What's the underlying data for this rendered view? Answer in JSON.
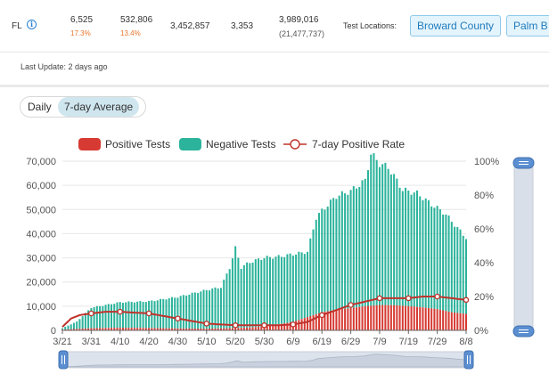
{
  "stats": {
    "state": "FL",
    "info_icon": "info-icon",
    "values": [
      {
        "value": "6,525",
        "sub": "17.3%"
      },
      {
        "value": "532,806",
        "sub": "13.4%"
      },
      {
        "value": "3,452,857",
        "sub": ""
      },
      {
        "value": "3,353",
        "sub": ""
      },
      {
        "value": "3,989,016",
        "sub": "(21,477,737)"
      }
    ],
    "test_locations_label": "Test Locations:",
    "locations": [
      "Broward County",
      "Palm B"
    ]
  },
  "last_update": "Last Update: 2 days ago",
  "toggle": {
    "options": [
      "Daily",
      "7-day Average"
    ],
    "active": "7-day Average"
  },
  "chart_data": {
    "type": "bar",
    "legend": [
      "Positive Tests",
      "Negative Tests",
      "7-day Positive Rate"
    ],
    "legend_position": "top",
    "colors": {
      "positive": "#d63a32",
      "negative": "#2bb39b",
      "rate": "#c0322c"
    },
    "x_tick_labels": [
      "3/21",
      "3/31",
      "4/10",
      "4/20",
      "4/30",
      "5/10",
      "5/20",
      "5/30",
      "6/9",
      "6/19",
      "6/29",
      "7/9",
      "7/19",
      "7/29",
      "8/8"
    ],
    "first_date": "3/21",
    "last_date": "8/8",
    "y_left_ticks": [
      "0",
      "10,000",
      "20,000",
      "30,000",
      "40,000",
      "50,000",
      "60,000",
      "70,000"
    ],
    "y_left_lim": [
      0,
      70000
    ],
    "y_right_ticks": [
      "0%",
      "20%",
      "40%",
      "60%",
      "80%",
      "100%"
    ],
    "y_right_lim": [
      0,
      100
    ],
    "grid": true,
    "series": [
      {
        "name": "Positive Tests",
        "anchors": [
          [
            0,
            300
          ],
          [
            10,
            900
          ],
          [
            20,
            1100
          ],
          [
            30,
            1000
          ],
          [
            40,
            800
          ],
          [
            50,
            700
          ],
          [
            60,
            1000
          ],
          [
            65,
            1200
          ],
          [
            70,
            1600
          ],
          [
            75,
            2500
          ],
          [
            80,
            3500
          ],
          [
            85,
            5500
          ],
          [
            90,
            7500
          ],
          [
            95,
            8500
          ],
          [
            100,
            9200
          ],
          [
            105,
            10000
          ],
          [
            110,
            10500
          ],
          [
            115,
            10400
          ],
          [
            120,
            10000
          ],
          [
            125,
            9500
          ],
          [
            130,
            8800
          ],
          [
            135,
            7500
          ],
          [
            140,
            6800
          ]
        ]
      },
      {
        "name": "Negative Tests",
        "anchors": [
          [
            0,
            600
          ],
          [
            5,
            3000
          ],
          [
            10,
            8500
          ],
          [
            20,
            10500
          ],
          [
            30,
            11000
          ],
          [
            40,
            13000
          ],
          [
            50,
            16000
          ],
          [
            55,
            17000
          ],
          [
            58,
            25000
          ],
          [
            60,
            33000
          ],
          [
            62,
            25000
          ],
          [
            65,
            27000
          ],
          [
            70,
            28500
          ],
          [
            75,
            28000
          ],
          [
            80,
            28000
          ],
          [
            85,
            27000
          ],
          [
            88,
            40000
          ],
          [
            92,
            44000
          ],
          [
            95,
            47000
          ],
          [
            100,
            48500
          ],
          [
            105,
            52000
          ],
          [
            107,
            63000
          ],
          [
            110,
            58500
          ],
          [
            113,
            57000
          ],
          [
            118,
            48000
          ],
          [
            123,
            47000
          ],
          [
            128,
            43000
          ],
          [
            133,
            40000
          ],
          [
            140,
            31500
          ]
        ]
      },
      {
        "name": "7-day Positive Rate",
        "anchors": [
          [
            0,
            2
          ],
          [
            3,
            7
          ],
          [
            6,
            9
          ],
          [
            10,
            10
          ],
          [
            15,
            11
          ],
          [
            20,
            11
          ],
          [
            30,
            10
          ],
          [
            40,
            7
          ],
          [
            50,
            4
          ],
          [
            60,
            3
          ],
          [
            65,
            3
          ],
          [
            70,
            3
          ],
          [
            75,
            3
          ],
          [
            80,
            3.5
          ],
          [
            85,
            5
          ],
          [
            90,
            9
          ],
          [
            95,
            12
          ],
          [
            100,
            15
          ],
          [
            105,
            17
          ],
          [
            110,
            19
          ],
          [
            115,
            19
          ],
          [
            120,
            19
          ],
          [
            125,
            20
          ],
          [
            130,
            20
          ],
          [
            135,
            19
          ],
          [
            140,
            18
          ]
        ]
      }
    ]
  }
}
